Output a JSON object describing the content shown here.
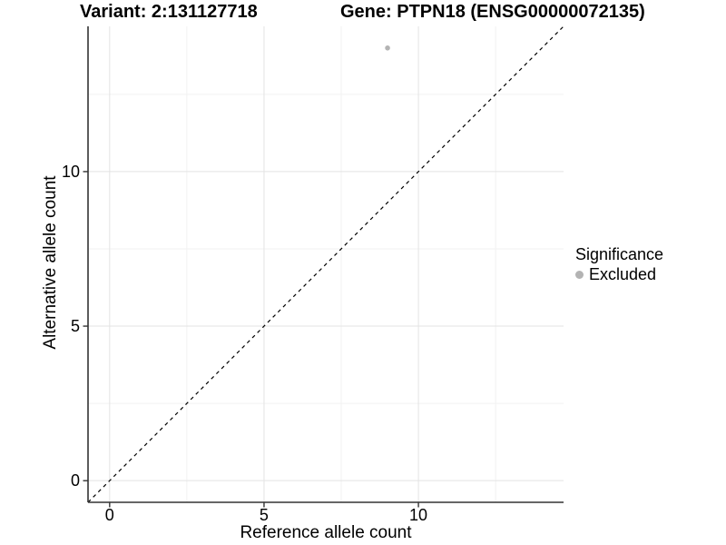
{
  "colors": {
    "point": "#b3b3b3",
    "axis_line": "#333333",
    "grid_major": "#e3e3e3",
    "grid_minor": "#f2f2f2",
    "reference_line": "#000000",
    "text": "#000000"
  },
  "chart_data": {
    "type": "scatter",
    "title_left": "Variant: 2:131127718",
    "title_right": "Gene: PTPN18 (ENSG00000072135)",
    "xlabel": "Reference allele count",
    "ylabel": "Alternative allele count",
    "xlim": [
      -0.7,
      14.7
    ],
    "ylim": [
      -0.7,
      14.7
    ],
    "xticks": [
      0,
      5,
      10
    ],
    "yticks": [
      0,
      5,
      10
    ],
    "minor_gridlines": [
      2.5,
      7.5,
      12.5
    ],
    "grid": "major+minor",
    "reference_line": {
      "type": "identity",
      "slope": 1,
      "intercept": 0,
      "style": "dashed"
    },
    "series": [
      {
        "name": "Excluded",
        "color": "#b3b3b3",
        "points": [
          {
            "x": 9,
            "y": 14
          }
        ]
      }
    ],
    "legend": {
      "title": "Significance",
      "position": "right",
      "items": [
        {
          "label": "Excluded",
          "color": "#b3b3b3"
        }
      ]
    }
  }
}
